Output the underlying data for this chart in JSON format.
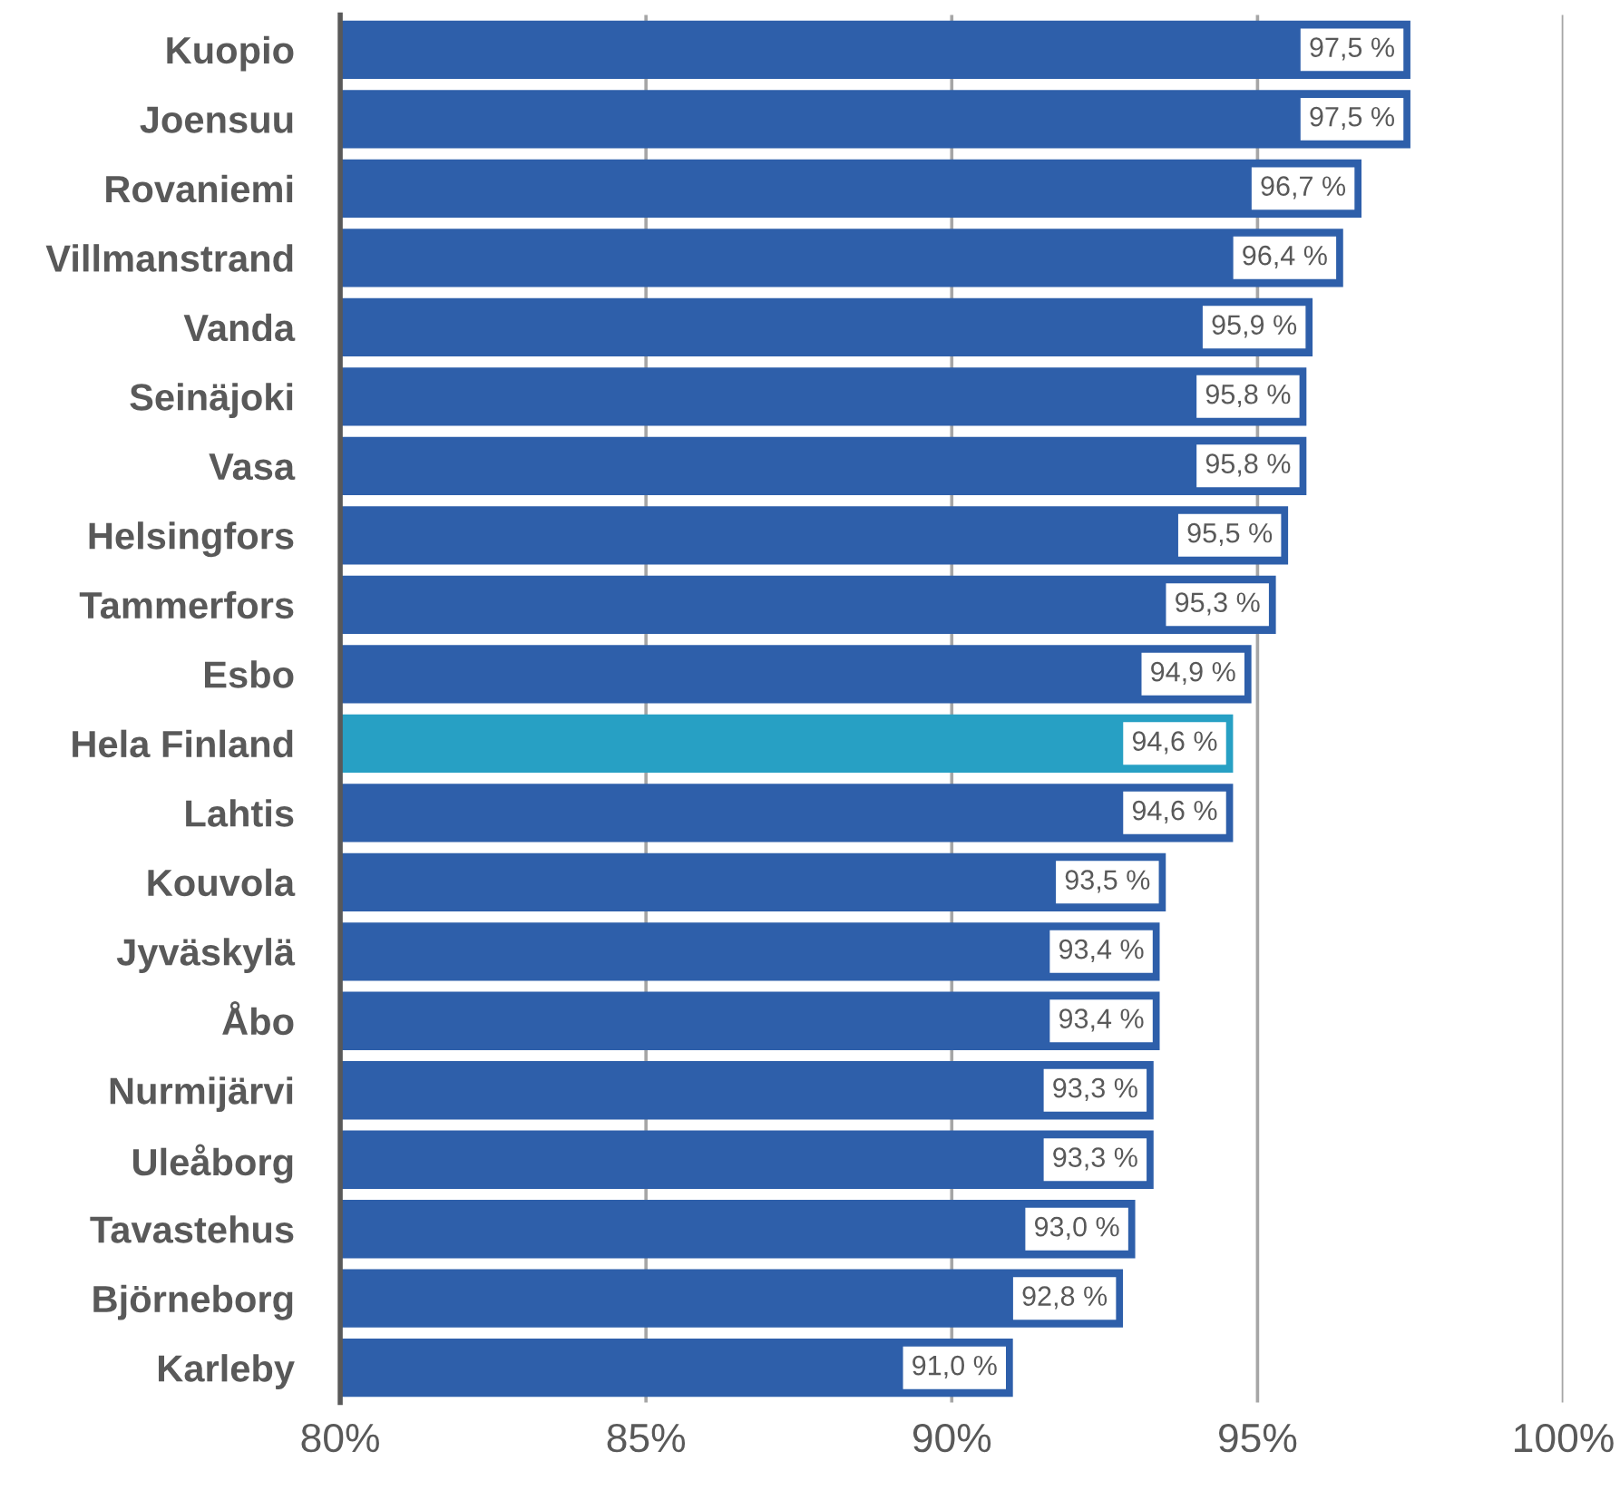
{
  "chart_data": {
    "type": "bar",
    "orientation": "horizontal",
    "categories": [
      "Kuopio",
      "Joensuu",
      "Rovaniemi",
      "Villmanstrand",
      "Vanda",
      "Seinäjoki",
      "Vasa",
      "Helsingfors",
      "Tammerfors",
      "Esbo",
      "Hela Finland",
      "Lahtis",
      "Kouvola",
      "Jyväskylä",
      "Åbo",
      "Nurmijärvi",
      "Uleåborg",
      "Tavastehus",
      "Björneborg",
      "Karleby"
    ],
    "values": [
      97.5,
      97.5,
      96.7,
      96.4,
      95.9,
      95.8,
      95.8,
      95.5,
      95.3,
      94.9,
      94.6,
      94.6,
      93.5,
      93.4,
      93.4,
      93.3,
      93.3,
      93.0,
      92.8,
      91.0
    ],
    "colors": [
      "#2e5faa",
      "#2e5faa",
      "#2e5faa",
      "#2e5faa",
      "#2e5faa",
      "#2e5faa",
      "#2e5faa",
      "#2e5faa",
      "#2e5faa",
      "#2e5faa",
      "#27a0c4",
      "#2e5faa",
      "#2e5faa",
      "#2e5faa",
      "#2e5faa",
      "#2e5faa",
      "#2e5faa",
      "#2e5faa",
      "#2e5faa",
      "#2e5faa"
    ],
    "value_labels": [
      "97,5 %",
      "97,5 %",
      "96,7 %",
      "96,4 %",
      "95,9 %",
      "95,8 %",
      "95,8 %",
      "95,5 %",
      "95,3 %",
      "94,9 %",
      "94,6 %",
      "94,6 %",
      "93,5 %",
      "93,4 %",
      "93,4 %",
      "93,3 %",
      "93,3 %",
      "93,0 %",
      "92,8 %",
      "91,0 %"
    ],
    "xlim": [
      80,
      100
    ],
    "xticks": [
      {
        "value": 80,
        "label": "80%"
      },
      {
        "value": 85,
        "label": "85%"
      },
      {
        "value": 90,
        "label": "90%"
      },
      {
        "value": 95,
        "label": "95%"
      },
      {
        "value": 100,
        "label": "100%"
      }
    ],
    "grid": "x"
  }
}
